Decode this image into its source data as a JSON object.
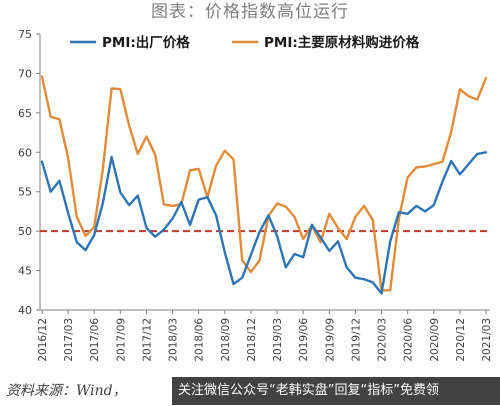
{
  "chart_data": {
    "type": "line",
    "title": "图表：价格指数高位运行",
    "xlabel": "",
    "ylabel": "",
    "ylim": [
      40,
      75
    ],
    "yticks": [
      40,
      45,
      50,
      55,
      60,
      65,
      70,
      75
    ],
    "grid": false,
    "legend_position": "top",
    "reference_line": {
      "value": 50,
      "color": "#c0392b",
      "style": "dashed"
    },
    "categories": [
      "2016/12",
      "2017/01",
      "2017/02",
      "2017/03",
      "2017/04",
      "2017/05",
      "2017/06",
      "2017/07",
      "2017/08",
      "2017/09",
      "2017/10",
      "2017/11",
      "2017/12",
      "2018/01",
      "2018/02",
      "2018/03",
      "2018/04",
      "2018/05",
      "2018/06",
      "2018/07",
      "2018/08",
      "2018/09",
      "2018/10",
      "2018/11",
      "2018/12",
      "2019/01",
      "2019/02",
      "2019/03",
      "2019/04",
      "2019/05",
      "2019/06",
      "2019/07",
      "2019/08",
      "2019/09",
      "2019/10",
      "2019/11",
      "2019/12",
      "2020/01",
      "2020/02",
      "2020/03",
      "2020/04",
      "2020/05",
      "2020/06",
      "2020/07",
      "2020/08",
      "2020/09",
      "2020/10",
      "2020/11",
      "2020/12",
      "2021/01",
      "2021/02",
      "2021/03"
    ],
    "tick_labels": [
      "2016/12",
      "2017/03",
      "2017/06",
      "2017/09",
      "2017/12",
      "2018/03",
      "2018/06",
      "2018/09",
      "2018/12",
      "2019/03",
      "2019/06",
      "2019/09",
      "2019/12",
      "2020/03",
      "2020/06",
      "2020/09",
      "2020/12",
      "2021/03"
    ],
    "series": [
      {
        "name": "PMI:出厂价格",
        "color": "#2e75b6",
        "values": [
          58.8,
          55.0,
          56.4,
          52.3,
          48.6,
          47.6,
          49.5,
          53.6,
          59.4,
          54.9,
          53.3,
          54.5,
          50.4,
          49.3,
          50.2,
          51.6,
          53.7,
          50.8,
          54.0,
          54.3,
          52.0,
          47.3,
          43.3,
          44.1,
          47.0,
          49.9,
          52.0,
          49.4,
          45.4,
          47.1,
          46.7,
          50.8,
          49.2,
          47.5,
          48.7,
          45.4,
          44.1,
          43.9,
          43.5,
          42.1,
          48.7,
          52.4,
          52.2,
          53.2,
          52.5,
          53.3,
          56.3,
          58.9,
          57.2,
          58.5,
          59.8,
          60.0
        ]
      },
      {
        "name": "PMI:主要原材料购进价格",
        "color": "#e08c3a",
        "values": [
          69.6,
          64.5,
          64.2,
          59.3,
          51.8,
          49.4,
          50.5,
          57.9,
          68.1,
          68.0,
          63.4,
          59.8,
          62.0,
          59.7,
          53.4,
          53.2,
          53.4,
          57.7,
          57.9,
          54.3,
          58.3,
          60.2,
          59.1,
          46.3,
          44.8,
          46.3,
          51.9,
          53.5,
          53.1,
          51.8,
          49.0,
          50.7,
          48.6,
          52.2,
          50.4,
          49.0,
          51.8,
          53.2,
          51.4,
          42.5,
          42.5,
          51.6,
          56.8,
          58.1,
          58.2,
          58.5,
          58.8,
          62.6,
          68.0,
          67.1,
          66.7,
          69.4
        ]
      }
    ]
  },
  "source_text": "资料来源：Wind，",
  "overlay_text": "关注微信公众号“老韩实盘”回复“指标”免费领"
}
